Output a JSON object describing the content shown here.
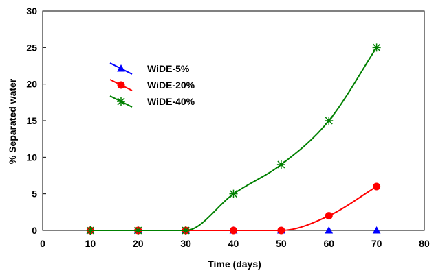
{
  "chart_data": {
    "type": "line",
    "title": "",
    "xlabel": "Time (days)",
    "ylabel": "% Separated water",
    "xlim": [
      0,
      80
    ],
    "ylim": [
      0,
      30
    ],
    "xticks": [
      0,
      10,
      20,
      30,
      40,
      50,
      60,
      70,
      80
    ],
    "yticks": [
      0,
      5,
      10,
      15,
      20,
      25,
      30
    ],
    "grid": false,
    "smoothed": true,
    "legend_position": "upper-left",
    "x": [
      10,
      20,
      30,
      40,
      50,
      60,
      70
    ],
    "series": [
      {
        "name": "WiDE-5%",
        "color": "#0000ff",
        "marker": "triangle",
        "values": [
          0,
          0,
          0,
          0,
          0,
          0,
          0
        ]
      },
      {
        "name": "WiDE-20%",
        "color": "#ff0000",
        "marker": "circle",
        "values": [
          0,
          0,
          0,
          0,
          0,
          2,
          6
        ]
      },
      {
        "name": "WiDE-40%",
        "color": "#008000",
        "marker": "asterisk",
        "values": [
          0,
          0,
          0,
          5,
          9,
          15,
          25
        ]
      }
    ]
  }
}
